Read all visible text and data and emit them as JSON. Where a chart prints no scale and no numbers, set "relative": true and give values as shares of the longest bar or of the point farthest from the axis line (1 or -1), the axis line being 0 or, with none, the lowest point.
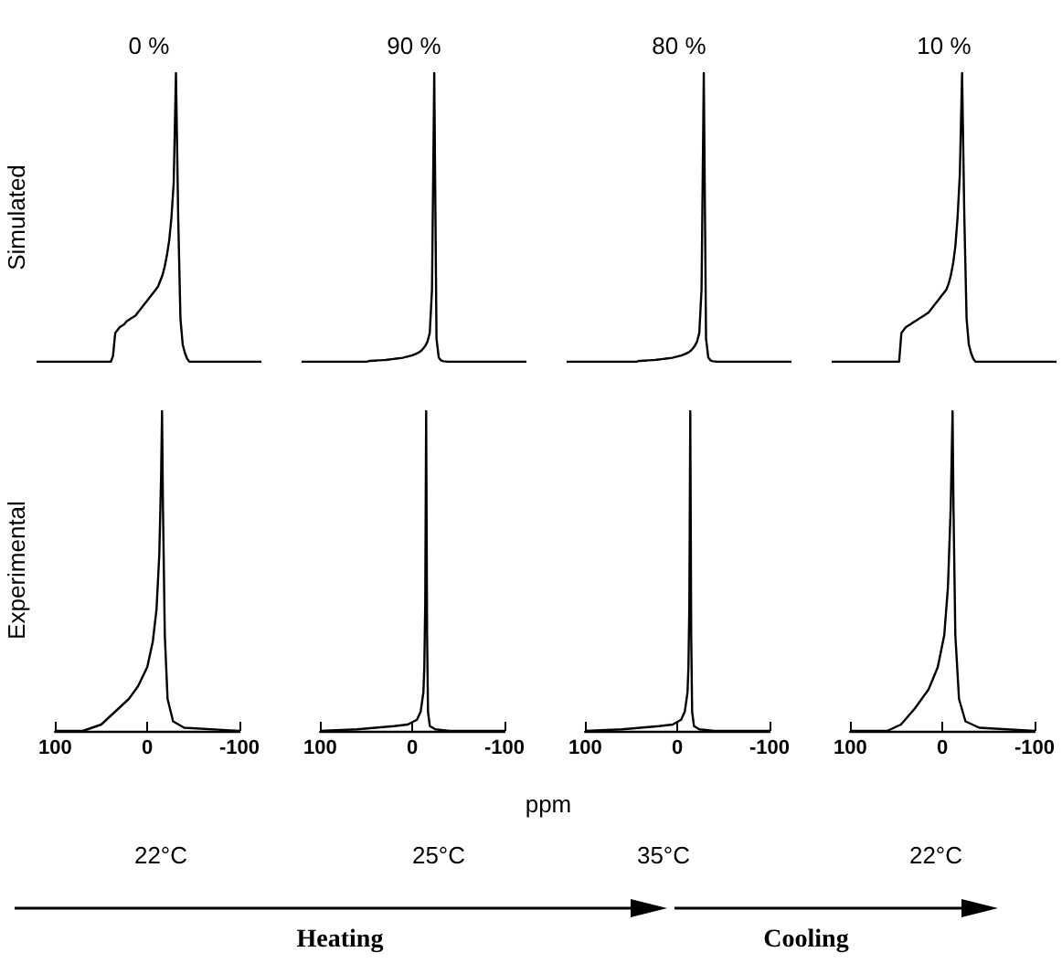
{
  "chart_data": [
    {
      "type": "line",
      "relative": true,
      "title": "0 %",
      "ylabel": "Simulated",
      "color": "#000000",
      "tick_labels": false,
      "categories": [
        null,
        null,
        null,
        null,
        null,
        null,
        null,
        null,
        null,
        null,
        null,
        null,
        null,
        null,
        null,
        null,
        null,
        null,
        null,
        null,
        null,
        null,
        null,
        null,
        null,
        null,
        null,
        null,
        null,
        null,
        null,
        null,
        null,
        null,
        null,
        null,
        null,
        null,
        null,
        null,
        null,
        null,
        null,
        null,
        null,
        null,
        null,
        null,
        null,
        null,
        null,
        null,
        null,
        null,
        null,
        null,
        null,
        null,
        null,
        null,
        null,
        null,
        null,
        null,
        null,
        null,
        null,
        null,
        null,
        null,
        null,
        null,
        null,
        null,
        null,
        null,
        null,
        null,
        null,
        null,
        null,
        null,
        null,
        null,
        null,
        null,
        null,
        null,
        null,
        null,
        null,
        null,
        null,
        null,
        null,
        null,
        null,
        null,
        null,
        null,
        null
      ],
      "values": [
        0,
        0,
        0,
        0,
        0,
        0,
        0,
        0,
        0,
        0,
        0,
        0,
        0,
        0,
        0,
        0,
        0,
        0,
        0,
        0,
        0,
        0,
        0,
        0,
        0,
        0,
        0,
        0,
        0,
        0,
        0,
        0,
        0,
        0,
        0.02,
        0.1,
        0.11,
        0.12,
        0.125,
        0.13,
        0.14,
        0.145,
        0.15,
        0.155,
        0.16,
        0.17,
        0.18,
        0.19,
        0.2,
        0.21,
        0.22,
        0.23,
        0.24,
        0.25,
        0.26,
        0.28,
        0.3,
        0.33,
        0.37,
        0.42,
        0.5,
        0.62,
        1,
        0.5,
        0.15,
        0.06,
        0.03,
        0.01,
        0,
        0,
        0,
        0,
        0,
        0,
        0,
        0,
        0,
        0,
        0,
        0,
        0,
        0,
        0,
        0,
        0,
        0,
        0,
        0,
        0,
        0,
        0,
        0,
        0,
        0,
        0,
        0,
        0,
        0,
        0,
        0,
        0
      ]
    },
    {
      "type": "line",
      "relative": true,
      "title": "90 %",
      "color": "#000000",
      "tick_labels": false,
      "categories": [
        null,
        null,
        null,
        null,
        null,
        null,
        null,
        null,
        null,
        null,
        null,
        null,
        null,
        null,
        null,
        null,
        null,
        null,
        null,
        null,
        null,
        null,
        null,
        null,
        null,
        null,
        null,
        null,
        null,
        null,
        null,
        null,
        null,
        null,
        null,
        null,
        null,
        null,
        null,
        null,
        null,
        null,
        null,
        null,
        null,
        null,
        null,
        null,
        null,
        null,
        null,
        null,
        null,
        null,
        null,
        null,
        null,
        null,
        null,
        null,
        null,
        null,
        null,
        null,
        null,
        null,
        null,
        null,
        null,
        null,
        null,
        null,
        null,
        null,
        null,
        null,
        null,
        null,
        null,
        null,
        null,
        null,
        null,
        null,
        null,
        null,
        null,
        null,
        null,
        null,
        null,
        null,
        null,
        null,
        null,
        null,
        null,
        null,
        null,
        null,
        null
      ],
      "values": [
        0,
        0,
        0,
        0,
        0,
        0,
        0,
        0,
        0,
        0,
        0,
        0,
        0,
        0,
        0,
        0,
        0,
        0,
        0,
        0,
        0,
        0,
        0,
        0,
        0,
        0,
        0,
        0,
        0,
        0,
        0.003,
        0.003,
        0.004,
        0.004,
        0.005,
        0.005,
        0.006,
        0.006,
        0.007,
        0.008,
        0.009,
        0.01,
        0.011,
        0.012,
        0.013,
        0.014,
        0.016,
        0.018,
        0.02,
        0.022,
        0.025,
        0.028,
        0.032,
        0.037,
        0.045,
        0.055,
        0.07,
        0.1,
        0.25,
        1,
        0.08,
        0.015,
        0.005,
        0.002,
        0.001,
        0,
        0,
        0,
        0,
        0,
        0,
        0,
        0,
        0,
        0,
        0,
        0,
        0,
        0,
        0,
        0,
        0,
        0,
        0,
        0,
        0,
        0,
        0,
        0,
        0,
        0,
        0,
        0,
        0,
        0,
        0,
        0,
        0,
        0,
        0,
        0
      ]
    },
    {
      "type": "line",
      "relative": true,
      "title": "80 %",
      "color": "#000000",
      "tick_labels": false,
      "categories": [
        null,
        null,
        null,
        null,
        null,
        null,
        null,
        null,
        null,
        null,
        null,
        null,
        null,
        null,
        null,
        null,
        null,
        null,
        null,
        null,
        null,
        null,
        null,
        null,
        null,
        null,
        null,
        null,
        null,
        null,
        null,
        null,
        null,
        null,
        null,
        null,
        null,
        null,
        null,
        null,
        null,
        null,
        null,
        null,
        null,
        null,
        null,
        null,
        null,
        null,
        null,
        null,
        null,
        null,
        null,
        null,
        null,
        null,
        null,
        null,
        null,
        null,
        null,
        null,
        null,
        null,
        null,
        null,
        null,
        null,
        null,
        null,
        null,
        null,
        null,
        null,
        null,
        null,
        null,
        null,
        null,
        null,
        null,
        null,
        null,
        null,
        null,
        null,
        null,
        null,
        null,
        null,
        null,
        null,
        null,
        null,
        null,
        null,
        null,
        null,
        null
      ],
      "values": [
        0,
        0,
        0,
        0,
        0,
        0,
        0,
        0,
        0,
        0,
        0,
        0,
        0,
        0,
        0,
        0,
        0,
        0,
        0,
        0,
        0,
        0,
        0,
        0,
        0,
        0,
        0,
        0,
        0,
        0,
        0,
        0,
        0.003,
        0.003,
        0.004,
        0.004,
        0.005,
        0.005,
        0.006,
        0.006,
        0.007,
        0.008,
        0.009,
        0.01,
        0.011,
        0.012,
        0.013,
        0.014,
        0.016,
        0.018,
        0.02,
        0.022,
        0.025,
        0.028,
        0.032,
        0.037,
        0.045,
        0.055,
        0.07,
        0.1,
        0.25,
        1,
        0.08,
        0.015,
        0.005,
        0.002,
        0.001,
        0,
        0,
        0,
        0,
        0,
        0,
        0,
        0,
        0,
        0,
        0,
        0,
        0,
        0,
        0,
        0,
        0,
        0,
        0,
        0,
        0,
        0,
        0,
        0,
        0,
        0,
        0,
        0,
        0,
        0,
        0,
        0,
        0,
        0
      ]
    },
    {
      "type": "line",
      "relative": true,
      "title": "10 %",
      "color": "#000000",
      "tick_labels": false,
      "categories": [
        null,
        null,
        null,
        null,
        null,
        null,
        null,
        null,
        null,
        null,
        null,
        null,
        null,
        null,
        null,
        null,
        null,
        null,
        null,
        null,
        null,
        null,
        null,
        null,
        null,
        null,
        null,
        null,
        null,
        null,
        null,
        null,
        null,
        null,
        null,
        null,
        null,
        null,
        null,
        null,
        null,
        null,
        null,
        null,
        null,
        null,
        null,
        null,
        null,
        null,
        null,
        null,
        null,
        null,
        null,
        null,
        null,
        null,
        null,
        null,
        null,
        null,
        null,
        null,
        null,
        null,
        null,
        null,
        null,
        null,
        null,
        null,
        null,
        null,
        null,
        null,
        null,
        null,
        null,
        null,
        null,
        null,
        null,
        null,
        null,
        null,
        null,
        null,
        null,
        null,
        null,
        null,
        null,
        null,
        null,
        null,
        null,
        null,
        null,
        null,
        null
      ],
      "values": [
        0,
        0,
        0,
        0,
        0,
        0,
        0,
        0,
        0,
        0,
        0,
        0,
        0,
        0,
        0,
        0,
        0,
        0,
        0,
        0,
        0,
        0,
        0,
        0,
        0,
        0,
        0,
        0,
        0,
        0,
        0,
        0.1,
        0.11,
        0.12,
        0.125,
        0.13,
        0.135,
        0.14,
        0.145,
        0.15,
        0.155,
        0.16,
        0.165,
        0.17,
        0.18,
        0.19,
        0.2,
        0.21,
        0.22,
        0.23,
        0.24,
        0.25,
        0.27,
        0.3,
        0.34,
        0.4,
        0.5,
        0.65,
        1,
        0.5,
        0.15,
        0.06,
        0.03,
        0.01,
        0,
        0,
        0,
        0,
        0,
        0,
        0,
        0,
        0,
        0,
        0,
        0,
        0,
        0,
        0,
        0,
        0,
        0,
        0,
        0,
        0,
        0,
        0,
        0,
        0,
        0,
        0,
        0,
        0,
        0,
        0,
        0,
        0,
        0,
        0,
        0,
        0
      ]
    },
    {
      "type": "line",
      "relative": true,
      "ylabel": "Experimental",
      "color": "#000000",
      "xlim": [
        100,
        -100
      ],
      "xticks": [
        100,
        0,
        -100
      ],
      "tick_labels": "x",
      "annotations": [
        "22°C"
      ],
      "x": [
        100,
        70,
        50,
        35,
        20,
        10,
        0,
        -6,
        -10,
        -13,
        -15,
        -16,
        -17,
        -19,
        -22,
        -28,
        -40,
        -100
      ],
      "values": [
        0,
        0,
        0.02,
        0.06,
        0.1,
        0.14,
        0.2,
        0.28,
        0.38,
        0.55,
        0.8,
        1,
        0.7,
        0.3,
        0.1,
        0.03,
        0.01,
        0
      ]
    },
    {
      "type": "line",
      "relative": true,
      "color": "#000000",
      "xlim": [
        100,
        -100
      ],
      "xticks": [
        100,
        0,
        -100
      ],
      "tick_labels": "x",
      "annotations": [
        "25°C",
        "ppm",
        "Heating"
      ],
      "x": [
        100,
        60,
        40,
        20,
        5,
        -5,
        -9,
        -12,
        -13,
        -14,
        -15,
        -16,
        -17,
        -19,
        -25,
        -40,
        -100
      ],
      "values": [
        0,
        0.005,
        0.01,
        0.015,
        0.02,
        0.035,
        0.06,
        0.12,
        0.2,
        0.4,
        1,
        0.3,
        0.06,
        0.015,
        0.005,
        0,
        0
      ]
    },
    {
      "type": "line",
      "relative": true,
      "color": "#000000",
      "xlim": [
        100,
        -100
      ],
      "xticks": [
        100,
        0,
        -100
      ],
      "tick_labels": "x",
      "annotations": [
        "35°C"
      ],
      "x": [
        100,
        60,
        40,
        20,
        5,
        -4,
        -8,
        -11,
        -12,
        -13,
        -14,
        -15,
        -16,
        -18,
        -24,
        -40,
        -100
      ],
      "values": [
        0,
        0.005,
        0.01,
        0.015,
        0.02,
        0.035,
        0.06,
        0.12,
        0.2,
        0.4,
        1,
        0.3,
        0.06,
        0.015,
        0.005,
        0,
        0
      ]
    },
    {
      "type": "line",
      "relative": true,
      "color": "#000000",
      "xlim": [
        100,
        -100
      ],
      "xticks": [
        100,
        0,
        -100
      ],
      "tick_labels": "x",
      "annotations": [
        "22°C",
        "Cooling"
      ],
      "x": [
        100,
        60,
        45,
        30,
        15,
        5,
        -2,
        -6,
        -9,
        -10,
        -11,
        -12,
        -14,
        -18,
        -25,
        -40,
        -100
      ],
      "values": [
        0,
        0,
        0.02,
        0.07,
        0.13,
        0.2,
        0.3,
        0.45,
        0.7,
        0.85,
        1,
        0.7,
        0.3,
        0.1,
        0.03,
        0.01,
        0
      ]
    }
  ]
}
